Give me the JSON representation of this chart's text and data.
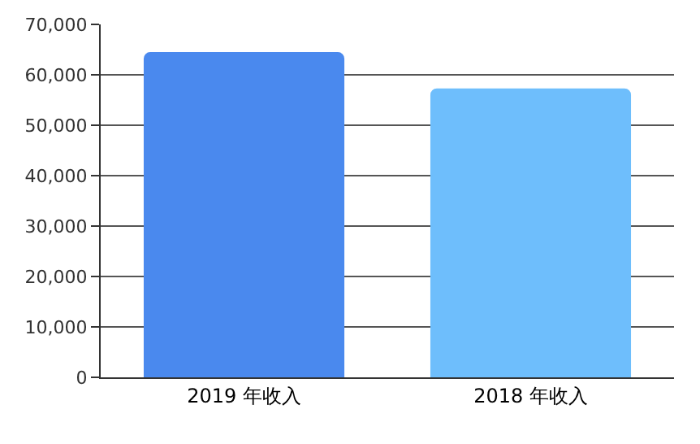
{
  "chart_data": {
    "type": "bar",
    "categories": [
      "2019 年收入",
      "2018 年收入"
    ],
    "values": [
      64500,
      57300
    ],
    "colors": [
      "#4a89ee",
      "#6ebefc"
    ],
    "ylim": [
      0,
      70000
    ],
    "yticks": [
      {
        "value": 0,
        "label": "0"
      },
      {
        "value": 10000,
        "label": "10,000"
      },
      {
        "value": 20000,
        "label": "20,000"
      },
      {
        "value": 30000,
        "label": "30,000"
      },
      {
        "value": 40000,
        "label": "40,000"
      },
      {
        "value": 50000,
        "label": "50,000"
      },
      {
        "value": 60000,
        "label": "60,000"
      },
      {
        "value": 70000,
        "label": "70,000"
      }
    ],
    "grid": "y"
  }
}
